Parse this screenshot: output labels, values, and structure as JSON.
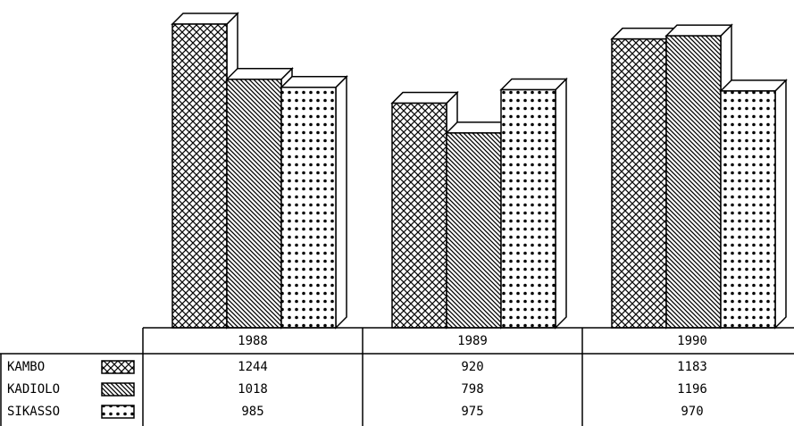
{
  "chart_data": {
    "type": "bar3d",
    "categories": [
      "1988",
      "1989",
      "1990"
    ],
    "series": [
      {
        "name": "KAMBO",
        "color": "#000000",
        "pattern": "crosshatch",
        "values": [
          1244,
          920,
          1183
        ]
      },
      {
        "name": "KADIOLO",
        "color": "#000000",
        "pattern": "diagonal",
        "values": [
          1018,
          798,
          1196
        ]
      },
      {
        "name": "SIKASSO",
        "color": "#000000",
        "pattern": "dots",
        "values": [
          985,
          975,
          970
        ]
      }
    ]
  }
}
